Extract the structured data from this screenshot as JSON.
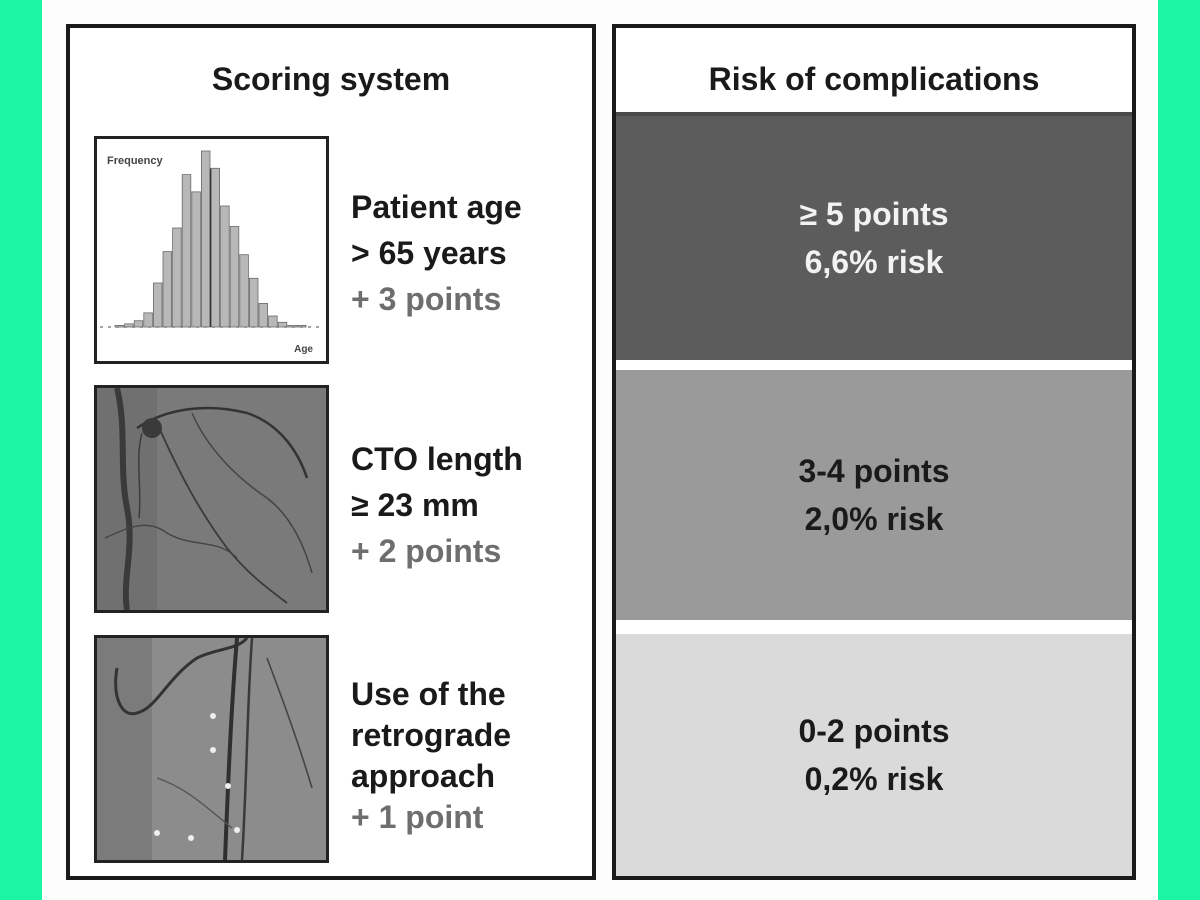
{
  "left_panel": {
    "title": "Scoring system",
    "criteria": [
      {
        "lines": [
          "Patient age",
          "> 65 years"
        ],
        "points": "+ 3 points",
        "image": {
          "kind": "histogram",
          "ylabel": "Frequency",
          "xlabel": "Age",
          "bars": [
            1,
            2,
            4,
            9,
            28,
            48,
            63,
            97,
            86,
            112,
            101,
            77,
            64,
            46,
            31,
            15,
            7,
            3,
            1,
            1
          ]
        }
      },
      {
        "lines": [
          "CTO length",
          "≥ 23 mm"
        ],
        "points": "+ 2 points",
        "image": {
          "kind": "angiogram"
        }
      },
      {
        "lines": [
          "Use of the",
          "retrograde",
          "approach"
        ],
        "points": "+ 1 point",
        "image": {
          "kind": "angiogram"
        }
      }
    ]
  },
  "right_panel": {
    "title": "Risk of complications",
    "bands": [
      {
        "points": "≥ 5 points",
        "risk": "6,6% risk",
        "color": "#5c5c5c"
      },
      {
        "points": "3-4 points",
        "risk": "2,0% risk",
        "color": "#9a9a9a"
      },
      {
        "points": "0-2 points",
        "risk": "0,2% risk",
        "color": "#dadada"
      }
    ]
  }
}
